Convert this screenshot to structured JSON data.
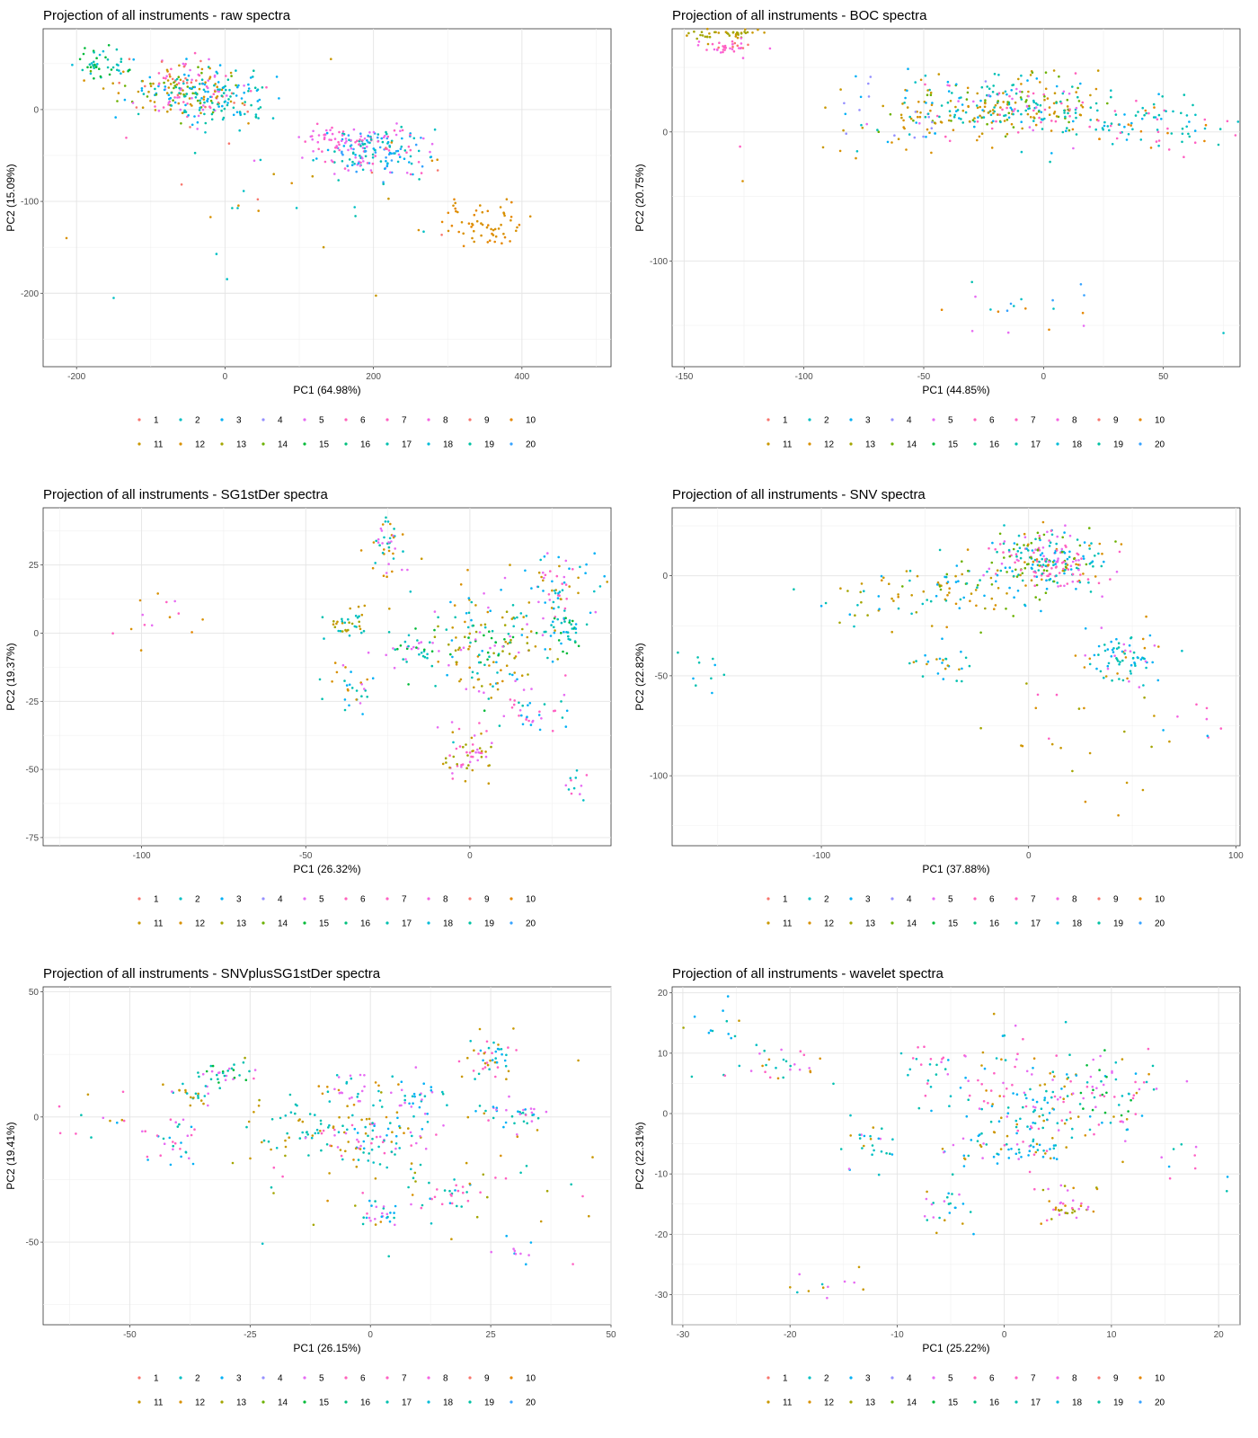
{
  "legend_labels": [
    "1",
    "2",
    "3",
    "4",
    "5",
    "6",
    "7",
    "8",
    "9",
    "10",
    "11",
    "12",
    "13",
    "14",
    "15",
    "16",
    "17",
    "18",
    "19",
    "20"
  ],
  "series_colors": [
    "#F8766D",
    "#00BFC4",
    "#00B0F6",
    "#9590FF",
    "#E76BF3",
    "#FF62BC",
    "#FF61C3",
    "#F564E3",
    "#F8766D",
    "#E58700",
    "#C99800",
    "#D89000",
    "#A3A500",
    "#6BB100",
    "#00BA38",
    "#00BF7D",
    "#00C0AF",
    "#00BCD8",
    "#00C1A3",
    "#35A2FF"
  ],
  "chart_data": [
    {
      "type": "scatter",
      "title": "Projection of all instruments - raw spectra",
      "xlabel": "PC1 (64.98%)",
      "ylabel": "PC2 (15.09%)",
      "xlim": [
        -245,
        520
      ],
      "ylim": [
        -280,
        88
      ],
      "xticks": [
        -200,
        0,
        200,
        400
      ],
      "yticks": [
        -200,
        -100,
        0
      ],
      "grid": true,
      "legend": "bottom",
      "clusters": [
        {
          "cx": -165,
          "cy": 48,
          "sx": 18,
          "sy": 9,
          "n": 45,
          "c": [
            16,
            17,
            14
          ]
        },
        {
          "cx": -55,
          "cy": 18,
          "sx": 40,
          "sy": 17,
          "n": 230,
          "c": [
            10,
            11,
            13,
            2,
            16,
            4,
            5,
            0
          ]
        },
        {
          "cx": 0,
          "cy": 10,
          "sx": 32,
          "sy": 15,
          "n": 80,
          "c": [
            1,
            2,
            18
          ]
        },
        {
          "cx": 200,
          "cy": -45,
          "sx": 38,
          "sy": 14,
          "n": 190,
          "c": [
            1,
            2,
            4,
            6,
            16,
            19
          ]
        },
        {
          "cx": 140,
          "cy": -30,
          "sx": 20,
          "sy": 8,
          "n": 30,
          "c": [
            4,
            6,
            7
          ]
        },
        {
          "cx": 350,
          "cy": -125,
          "sx": 28,
          "sy": 14,
          "n": 60,
          "c": [
            9,
            11
          ]
        },
        {
          "cx": 80,
          "cy": -100,
          "sx": 130,
          "sy": 60,
          "n": 40,
          "c": [
            0,
            1,
            4,
            10,
            16,
            11
          ]
        }
      ]
    },
    {
      "type": "scatter",
      "title": "Projection of all instruments - BOC spectra",
      "xlabel": "PC1 (44.85%)",
      "ylabel": "PC2 (20.75%)",
      "xlim": [
        -155,
        82
      ],
      "ylim": [
        -182,
        80
      ],
      "xticks": [
        -150,
        -100,
        -50,
        0,
        50
      ],
      "yticks": [
        -100,
        0
      ],
      "grid": true,
      "legend": "bottom",
      "clusters": [
        {
          "cx": -135,
          "cy": 76,
          "sx": 8,
          "sy": 2,
          "n": 40,
          "c": [
            12,
            10
          ]
        },
        {
          "cx": -132,
          "cy": 66,
          "sx": 6,
          "sy": 3,
          "n": 35,
          "c": [
            6,
            7,
            0
          ]
        },
        {
          "cx": -15,
          "cy": 20,
          "sx": 22,
          "sy": 12,
          "n": 300,
          "c": [
            1,
            2,
            16,
            4,
            5,
            10,
            11,
            13
          ]
        },
        {
          "cx": 45,
          "cy": 5,
          "sx": 18,
          "sy": 12,
          "n": 90,
          "c": [
            1,
            2,
            6,
            9,
            16
          ]
        },
        {
          "cx": -55,
          "cy": 10,
          "sx": 18,
          "sy": 12,
          "n": 50,
          "c": [
            10,
            11,
            2,
            3
          ]
        },
        {
          "cx": -5,
          "cy": -135,
          "sx": 25,
          "sy": 15,
          "n": 20,
          "c": [
            1,
            4,
            16,
            9,
            19
          ]
        },
        {
          "cx": -80,
          "cy": 10,
          "sx": 50,
          "sy": 20,
          "n": 15,
          "c": [
            11,
            1,
            6
          ]
        }
      ]
    },
    {
      "type": "scatter",
      "title": "Projection of all instruments - SG1stDer spectra",
      "xlabel": "PC1 (26.32%)",
      "ylabel": "PC2 (19.37%)",
      "xlim": [
        -130,
        43
      ],
      "ylim": [
        -78,
        46
      ],
      "xticks": [
        -100,
        -50,
        0
      ],
      "yticks": [
        -75,
        -50,
        -25,
        0,
        25
      ],
      "grid": true,
      "legend": "bottom",
      "clusters": [
        {
          "cx": -25,
          "cy": 30,
          "sx": 3,
          "sy": 7,
          "n": 45,
          "c": [
            1,
            4,
            11,
            16
          ]
        },
        {
          "cx": -37,
          "cy": 4,
          "sx": 3,
          "sy": 3,
          "n": 35,
          "c": [
            1,
            10,
            12,
            16
          ]
        },
        {
          "cx": -37,
          "cy": -20,
          "sx": 4,
          "sy": 5,
          "n": 30,
          "c": [
            2,
            4,
            11,
            16
          ]
        },
        {
          "cx": -17,
          "cy": -6,
          "sx": 4,
          "sy": 3,
          "n": 35,
          "c": [
            1,
            16,
            4,
            14
          ]
        },
        {
          "cx": 5,
          "cy": -5,
          "sx": 10,
          "sy": 12,
          "n": 170,
          "c": [
            1,
            2,
            4,
            10,
            11,
            12,
            16,
            14
          ]
        },
        {
          "cx": 25,
          "cy": 15,
          "sx": 6,
          "sy": 7,
          "n": 70,
          "c": [
            1,
            4,
            6,
            2,
            10
          ]
        },
        {
          "cx": 30,
          "cy": 0,
          "sx": 3,
          "sy": 4,
          "n": 35,
          "c": [
            16,
            1,
            14,
            2
          ]
        },
        {
          "cx": 0,
          "cy": -45,
          "sx": 4,
          "sy": 5,
          "n": 55,
          "c": [
            12,
            10,
            4,
            6
          ]
        },
        {
          "cx": 20,
          "cy": -27,
          "sx": 5,
          "sy": 4,
          "n": 35,
          "c": [
            2,
            6,
            4,
            16
          ]
        },
        {
          "cx": 32,
          "cy": -55,
          "sx": 2,
          "sy": 4,
          "n": 12,
          "c": [
            4,
            6,
            1
          ]
        },
        {
          "cx": -95,
          "cy": 5,
          "sx": 7,
          "sy": 6,
          "n": 14,
          "c": [
            6,
            4,
            9,
            11,
            1
          ]
        }
      ]
    },
    {
      "type": "scatter",
      "title": "Projection of all instruments - SNV spectra",
      "xlabel": "PC1 (37.88%)",
      "ylabel": "PC2 (22.82%)",
      "xlim": [
        -172,
        102
      ],
      "ylim": [
        -135,
        34
      ],
      "xticks": [
        -100,
        0,
        100
      ],
      "yticks": [
        -100,
        -50,
        0
      ],
      "grid": true,
      "legend": "bottom",
      "clusters": [
        {
          "cx": 10,
          "cy": 8,
          "sx": 14,
          "sy": 7,
          "n": 250,
          "c": [
            1,
            2,
            4,
            5,
            16,
            6,
            11,
            13
          ]
        },
        {
          "cx": -25,
          "cy": -5,
          "sx": 20,
          "sy": 8,
          "n": 80,
          "c": [
            10,
            11,
            2,
            16,
            13
          ]
        },
        {
          "cx": -70,
          "cy": -15,
          "sx": 18,
          "sy": 7,
          "n": 35,
          "c": [
            1,
            16,
            12,
            10,
            2
          ]
        },
        {
          "cx": 45,
          "cy": -40,
          "sx": 10,
          "sy": 7,
          "n": 80,
          "c": [
            4,
            1,
            2,
            16,
            11
          ]
        },
        {
          "cx": -40,
          "cy": -45,
          "sx": 8,
          "sy": 4,
          "n": 25,
          "c": [
            2,
            16,
            10
          ]
        },
        {
          "cx": -155,
          "cy": -48,
          "sx": 6,
          "sy": 6,
          "n": 10,
          "c": [
            2,
            16,
            10
          ]
        },
        {
          "cx": 20,
          "cy": -85,
          "sx": 25,
          "sy": 20,
          "n": 25,
          "c": [
            10,
            11,
            12,
            6
          ]
        },
        {
          "cx": 85,
          "cy": -75,
          "sx": 7,
          "sy": 6,
          "n": 8,
          "c": [
            6,
            7,
            2
          ]
        }
      ]
    },
    {
      "type": "scatter",
      "title": "Projection of all instruments - SNVplusSG1stDer spectra",
      "xlabel": "PC1 (26.15%)",
      "ylabel": "PC2 (19.41%)",
      "xlim": [
        -68,
        50
      ],
      "ylim": [
        -83,
        52
      ],
      "xticks": [
        -50,
        -25,
        0,
        25,
        50
      ],
      "yticks": [
        -50,
        0,
        50
      ],
      "grid": true,
      "legend": "bottom",
      "clusters": [
        {
          "cx": -30,
          "cy": 18,
          "sx": 3,
          "sy": 2,
          "n": 30,
          "c": [
            14,
            16,
            4
          ]
        },
        {
          "cx": -37,
          "cy": 9,
          "sx": 3,
          "sy": 2,
          "n": 25,
          "c": [
            1,
            4,
            16,
            10
          ]
        },
        {
          "cx": -40,
          "cy": -10,
          "sx": 3,
          "sy": 5,
          "n": 30,
          "c": [
            2,
            4,
            6,
            16
          ]
        },
        {
          "cx": -15,
          "cy": -5,
          "sx": 5,
          "sy": 6,
          "n": 40,
          "c": [
            1,
            16,
            10
          ]
        },
        {
          "cx": -5,
          "cy": 10,
          "sx": 4,
          "sy": 3,
          "n": 30,
          "c": [
            1,
            4,
            11
          ]
        },
        {
          "cx": 0,
          "cy": -8,
          "sx": 6,
          "sy": 6,
          "n": 90,
          "c": [
            1,
            2,
            4,
            16,
            6,
            10
          ]
        },
        {
          "cx": 10,
          "cy": 10,
          "sx": 3,
          "sy": 4,
          "n": 30,
          "c": [
            1,
            2,
            4
          ]
        },
        {
          "cx": 25,
          "cy": 25,
          "sx": 3,
          "sy": 5,
          "n": 45,
          "c": [
            1,
            2,
            6,
            10
          ]
        },
        {
          "cx": 30,
          "cy": 2,
          "sx": 3,
          "sy": 3,
          "n": 35,
          "c": [
            2,
            16,
            4
          ]
        },
        {
          "cx": 17,
          "cy": -32,
          "sx": 3,
          "sy": 3,
          "n": 25,
          "c": [
            6,
            2,
            16
          ]
        },
        {
          "cx": 3,
          "cy": -38,
          "sx": 3,
          "sy": 3,
          "n": 25,
          "c": [
            2,
            16,
            4
          ]
        },
        {
          "cx": 30,
          "cy": -55,
          "sx": 2,
          "sy": 3,
          "n": 10,
          "c": [
            2,
            4
          ]
        },
        {
          "cx": 10,
          "cy": -20,
          "sx": 22,
          "sy": 20,
          "n": 80,
          "c": [
            10,
            11,
            12,
            6,
            1,
            16
          ]
        },
        {
          "cx": -58,
          "cy": 2,
          "sx": 5,
          "sy": 6,
          "n": 14,
          "c": [
            16,
            10,
            2,
            4,
            6
          ]
        }
      ]
    },
    {
      "type": "scatter",
      "title": "Projection of all instruments - wavelet spectra",
      "xlabel": "PC1 (25.22%)",
      "ylabel": "PC2 (22.31%)",
      "xlim": [
        -31,
        22
      ],
      "ylim": [
        -35,
        21
      ],
      "xticks": [
        -30,
        -20,
        -10,
        0,
        10,
        20
      ],
      "yticks": [
        -30,
        -20,
        -10,
        0,
        10,
        20
      ],
      "grid": true,
      "legend": "bottom",
      "clusters": [
        {
          "cx": -26,
          "cy": 15,
          "sx": 1.5,
          "sy": 1.5,
          "n": 12,
          "c": [
            10,
            16,
            2,
            12
          ]
        },
        {
          "cx": -21,
          "cy": 8,
          "sx": 2.5,
          "sy": 2,
          "n": 30,
          "c": [
            11,
            1,
            16,
            4,
            6
          ]
        },
        {
          "cx": -13,
          "cy": -5,
          "sx": 1.5,
          "sy": 2,
          "n": 25,
          "c": [
            1,
            2,
            16,
            4,
            10
          ]
        },
        {
          "cx": -7,
          "cy": 8,
          "sx": 1.5,
          "sy": 2,
          "n": 18,
          "c": [
            1,
            6,
            16
          ]
        },
        {
          "cx": 3,
          "cy": 3,
          "sx": 5,
          "sy": 5,
          "n": 170,
          "c": [
            1,
            2,
            4,
            6,
            16,
            11,
            10
          ]
        },
        {
          "cx": 10,
          "cy": 3,
          "sx": 2,
          "sy": 3,
          "n": 45,
          "c": [
            1,
            4,
            6,
            14
          ]
        },
        {
          "cx": -2,
          "cy": -6,
          "sx": 2,
          "sy": 2,
          "n": 30,
          "c": [
            2,
            16,
            4,
            10
          ]
        },
        {
          "cx": 3,
          "cy": -6,
          "sx": 1.5,
          "sy": 1.5,
          "n": 30,
          "c": [
            10,
            6,
            1,
            2
          ]
        },
        {
          "cx": 6,
          "cy": -15,
          "sx": 1.5,
          "sy": 2,
          "n": 40,
          "c": [
            11,
            12,
            6,
            4
          ]
        },
        {
          "cx": -5,
          "cy": -16,
          "sx": 1.5,
          "sy": 2,
          "n": 25,
          "c": [
            2,
            16,
            4,
            10
          ]
        },
        {
          "cx": -18,
          "cy": -28,
          "sx": 3,
          "sy": 1.5,
          "n": 12,
          "c": [
            1,
            4,
            10
          ]
        },
        {
          "cx": 18,
          "cy": -8,
          "sx": 1.5,
          "sy": 2,
          "n": 10,
          "c": [
            2,
            16,
            4,
            6
          ]
        }
      ]
    }
  ]
}
